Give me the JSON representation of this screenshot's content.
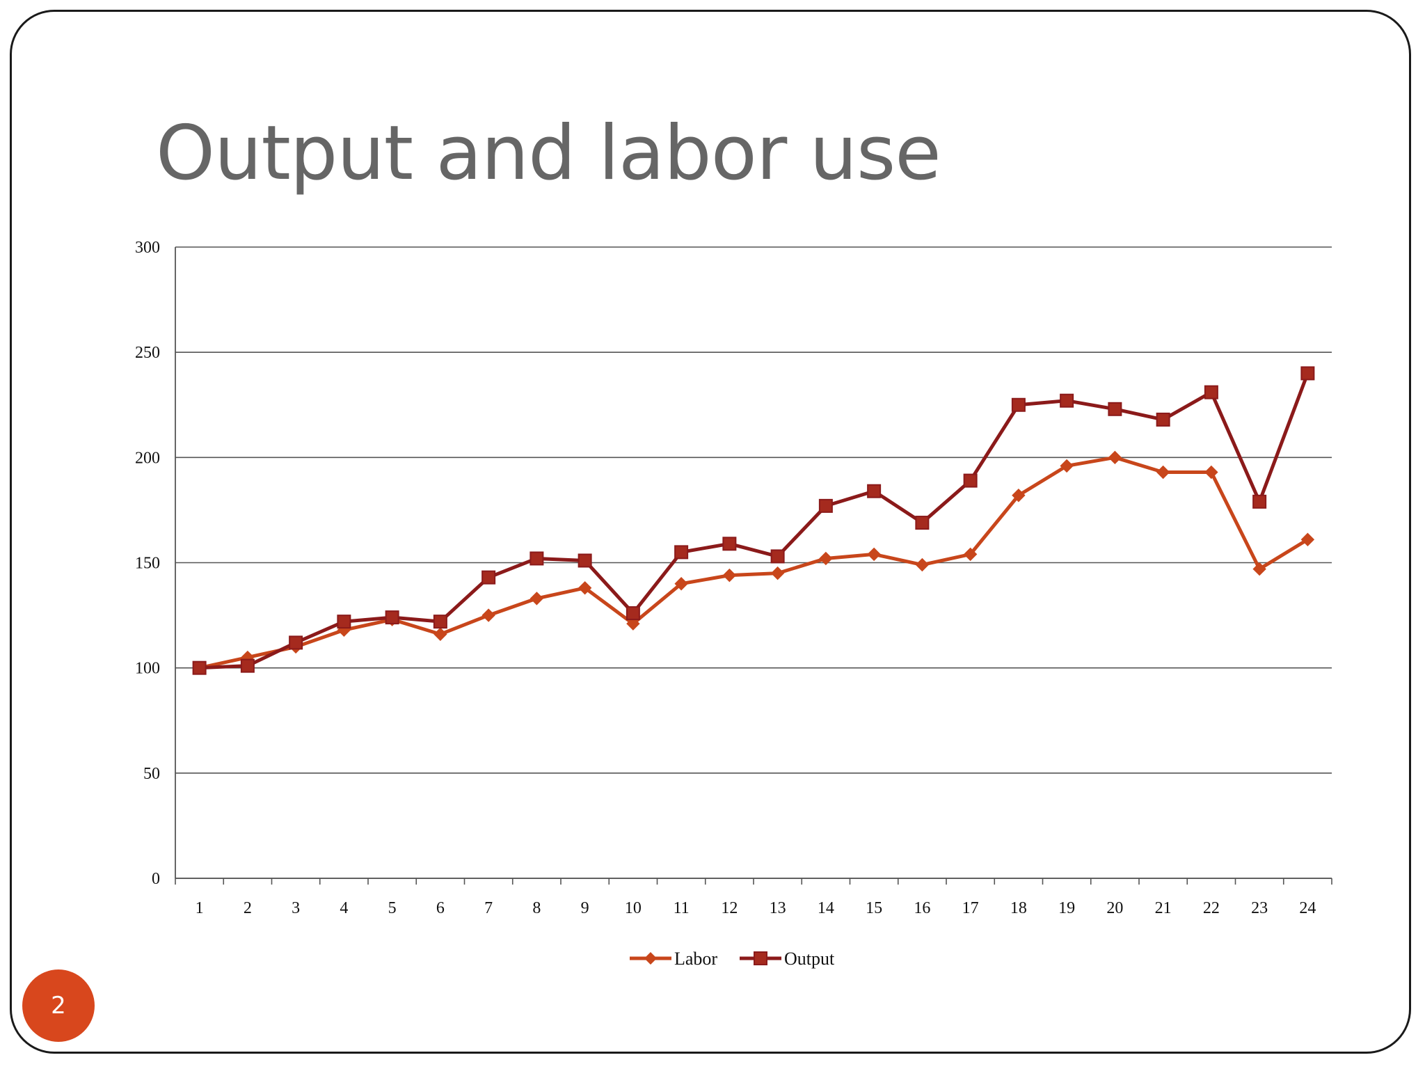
{
  "slide": {
    "title": "Output and labor use",
    "page_number": "2"
  },
  "colors": {
    "labor": "#c8461b",
    "output": "#8b1a1a",
    "output_marker": "#a52a1e",
    "badge": "#d8471d",
    "title": "#666666",
    "gridline": "#555555"
  },
  "chart_data": {
    "type": "line",
    "title": "",
    "xlabel": "",
    "ylabel": "",
    "x": [
      1,
      2,
      3,
      4,
      5,
      6,
      7,
      8,
      9,
      10,
      11,
      12,
      13,
      14,
      15,
      16,
      17,
      18,
      19,
      20,
      21,
      22,
      23,
      24
    ],
    "ylim": [
      0,
      300
    ],
    "yticks": [
      0,
      50,
      100,
      150,
      200,
      250,
      300
    ],
    "grid": true,
    "legend_position": "bottom",
    "series": [
      {
        "name": "Labor",
        "marker": "diamond",
        "values": [
          100,
          105,
          110,
          118,
          123,
          116,
          125,
          133,
          138,
          121,
          140,
          144,
          145,
          152,
          154,
          149,
          154,
          182,
          196,
          200,
          193,
          193,
          147,
          161
        ]
      },
      {
        "name": "Output",
        "marker": "square",
        "values": [
          100,
          101,
          112,
          122,
          124,
          122,
          143,
          152,
          151,
          126,
          155,
          159,
          153,
          177,
          184,
          169,
          189,
          225,
          227,
          223,
          218,
          231,
          179,
          240
        ]
      }
    ]
  }
}
